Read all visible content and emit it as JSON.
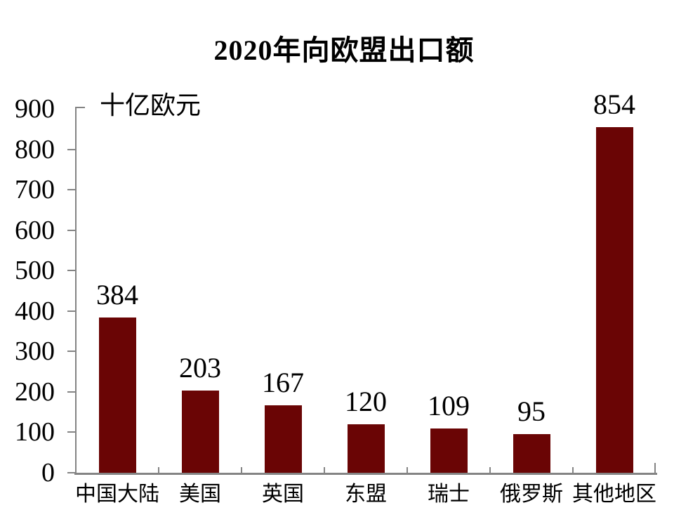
{
  "page": {
    "background_color": "#ffffff",
    "text_color": "#000000"
  },
  "chart_data": {
    "type": "bar",
    "title": "2020年向欧盟出口额",
    "ylabel": "十亿欧元",
    "xlabel": "",
    "categories": [
      "中国大陆",
      "美国",
      "英国",
      "东盟",
      "瑞士",
      "俄罗斯",
      "其他地区"
    ],
    "values": [
      384,
      203,
      167,
      120,
      109,
      95,
      854
    ],
    "data_labels_shown": true,
    "y_ticks": [
      0,
      100,
      200,
      300,
      400,
      500,
      600,
      700,
      800,
      900
    ],
    "ylim": [
      0,
      900
    ],
    "grid": false,
    "legend": "none",
    "bar_color": "#6a0505",
    "axis_color": "#848484"
  }
}
